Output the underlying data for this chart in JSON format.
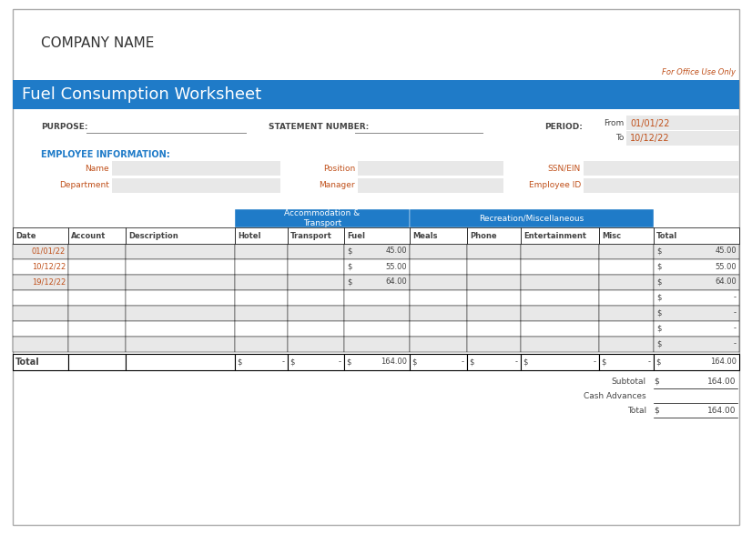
{
  "title_company": "COMPANY NAME",
  "title_worksheet": "Fuel Consumption Worksheet",
  "office_use": "For Office Use Only",
  "blue": "#1F7BC8",
  "orange": "#C0501A",
  "light_gray": "#E8E8E8",
  "mid_gray": "#D0D0D0",
  "white": "#FFFFFF",
  "black": "#000000",
  "dark_text": "#444444",
  "blue_text": "#1F7BC8",
  "form_labels": {
    "purpose": "PURPOSE:",
    "statement_number": "STATEMENT NUMBER:",
    "period": "PERIOD:",
    "from_label": "From",
    "to_label": "To",
    "from_date": "01/01/22",
    "to_date": "10/12/22",
    "employee_info": "EMPLOYEE INFORMATION:",
    "name": "Name",
    "department": "Department",
    "position": "Position",
    "manager": "Manager",
    "ssn": "SSN/EIN",
    "employee_id": "Employee ID"
  },
  "col_names": [
    "Date",
    "Account",
    "Description",
    "Hotel",
    "Transport",
    "Fuel",
    "Meals",
    "Phone",
    "Entertainment",
    "Misc",
    "Total"
  ],
  "data_rows": [
    {
      "date": "01/01/22",
      "fuel": "45.00",
      "total": "45.00",
      "shade": true
    },
    {
      "date": "10/12/22",
      "fuel": "55.00",
      "total": "55.00",
      "shade": false
    },
    {
      "date": "19/12/22",
      "fuel": "64.00",
      "total": "64.00",
      "shade": true
    },
    {
      "date": "",
      "fuel": "",
      "total": "-",
      "shade": false
    },
    {
      "date": "",
      "fuel": "",
      "total": "-",
      "shade": true
    },
    {
      "date": "",
      "fuel": "",
      "total": "-",
      "shade": false
    },
    {
      "date": "",
      "fuel": "",
      "total": "-",
      "shade": true
    }
  ],
  "total_row": {
    "hotel": "-",
    "transport": "-",
    "fuel": "164.00",
    "meals": "-",
    "phone": "-",
    "entertainment": "-",
    "misc": "-",
    "total": "164.00"
  },
  "subtotal_value": "164.00",
  "total_value": "164.00"
}
